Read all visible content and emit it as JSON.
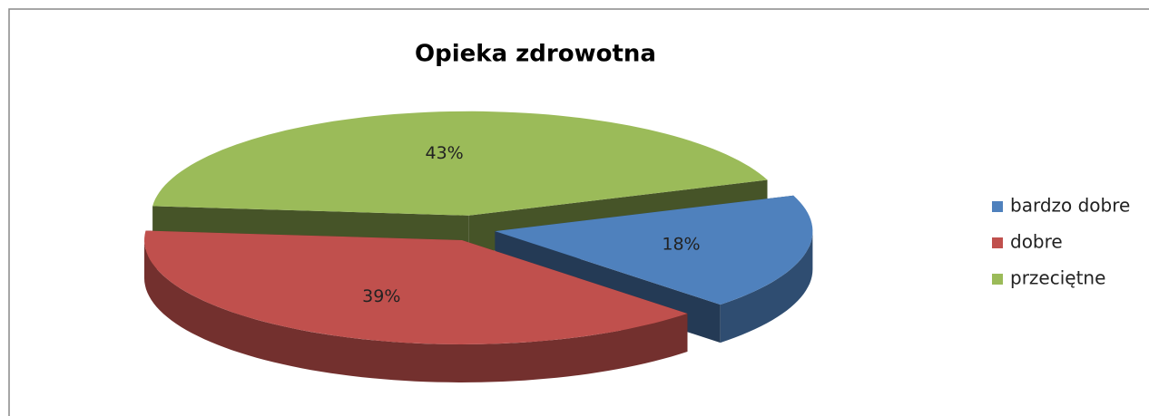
{
  "chart_data": {
    "type": "pie",
    "title": "Opieka zdrowotna",
    "categories": [
      "bardzo dobre",
      "dobre",
      "przeciętne"
    ],
    "values": [
      18,
      39,
      43
    ],
    "value_labels": [
      "18%",
      "39%",
      "43%"
    ],
    "colors": [
      "#4f81bd",
      "#c0504d",
      "#9bbb59"
    ],
    "legend": "right"
  }
}
